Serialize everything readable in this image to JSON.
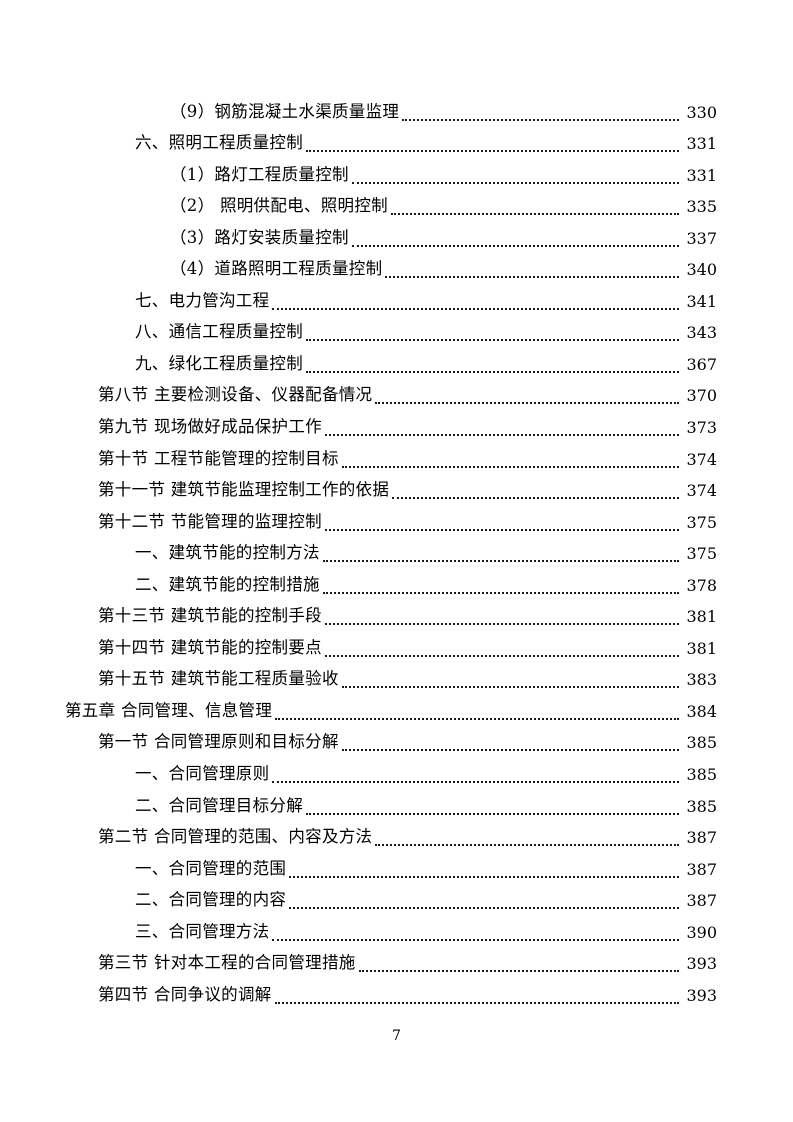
{
  "page": {
    "footer_page_number": "7",
    "background_color": "#ffffff",
    "ink_color": "#000000"
  },
  "toc": {
    "entries": [
      {
        "level": 3,
        "title": "（9）钢筋混凝土水渠质量监理",
        "page": "330"
      },
      {
        "level": 2,
        "title": "六、照明工程质量控制",
        "page": "331"
      },
      {
        "level": 3,
        "title": "（1）路灯工程质量控制",
        "page": "331"
      },
      {
        "level": 3,
        "title": "（2） 照明供配电、照明控制",
        "page": "335"
      },
      {
        "level": 3,
        "title": "（3）路灯安装质量控制",
        "page": "337"
      },
      {
        "level": 3,
        "title": "（4）道路照明工程质量控制",
        "page": "340"
      },
      {
        "level": 2,
        "title": "七、电力管沟工程",
        "page": "341"
      },
      {
        "level": 2,
        "title": "八、通信工程质量控制",
        "page": "343"
      },
      {
        "level": 2,
        "title": "九、绿化工程质量控制",
        "page": "367"
      },
      {
        "level": 1,
        "title": "第八节 主要检测设备、仪器配备情况",
        "page": "370"
      },
      {
        "level": 1,
        "title": "第九节 现场做好成品保护工作",
        "page": "373"
      },
      {
        "level": 1,
        "title": "第十节 工程节能管理的控制目标",
        "page": "374"
      },
      {
        "level": 1,
        "title": "第十一节 建筑节能监理控制工作的依据",
        "page": "374"
      },
      {
        "level": 1,
        "title": "第十二节 节能管理的监理控制",
        "page": "375"
      },
      {
        "level": 2,
        "title": "一、建筑节能的控制方法",
        "page": "375"
      },
      {
        "level": 2,
        "title": "二、建筑节能的控制措施",
        "page": "378"
      },
      {
        "level": 1,
        "title": "第十三节 建筑节能的控制手段",
        "page": "381"
      },
      {
        "level": 1,
        "title": "第十四节 建筑节能的控制要点",
        "page": "381"
      },
      {
        "level": 1,
        "title": "第十五节 建筑节能工程质量验收",
        "page": "383"
      },
      {
        "level": 0,
        "title": "第五章 合同管理、信息管理",
        "page": "384"
      },
      {
        "level": 1,
        "title": "第一节 合同管理原则和目标分解",
        "page": "385"
      },
      {
        "level": 2,
        "title": "一、合同管理原则",
        "page": "385"
      },
      {
        "level": 2,
        "title": "二、合同管理目标分解",
        "page": "385"
      },
      {
        "level": 1,
        "title": "第二节 合同管理的范围、内容及方法",
        "page": "387"
      },
      {
        "level": 2,
        "title": "一、合同管理的范围",
        "page": "387"
      },
      {
        "level": 2,
        "title": "二、合同管理的内容",
        "page": "387"
      },
      {
        "level": 2,
        "title": "三、合同管理方法",
        "page": "390"
      },
      {
        "level": 1,
        "title": "第三节 针对本工程的合同管理措施",
        "page": "393"
      },
      {
        "level": 1,
        "title": "第四节 合同争议的调解",
        "page": "393"
      }
    ]
  }
}
